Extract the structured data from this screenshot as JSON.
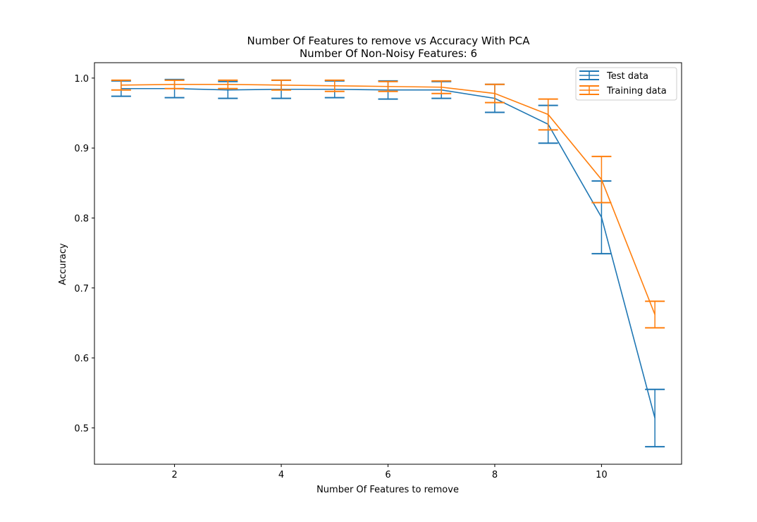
{
  "chart_data": {
    "type": "line",
    "title": "Number Of Features to remove vs Accuracy With PCA",
    "subtitle": "Number Of Non-Noisy Features: 6",
    "xlabel": "Number Of Features to remove",
    "ylabel": "Accuracy",
    "xlim": [
      0.5,
      11.5
    ],
    "ylim": [
      0.448,
      1.022
    ],
    "x_ticks": [
      2,
      4,
      6,
      8,
      10
    ],
    "y_ticks": [
      0.5,
      0.6,
      0.7,
      0.8,
      0.9,
      1.0
    ],
    "x_tick_labels": [
      "2",
      "4",
      "6",
      "8",
      "10"
    ],
    "y_tick_labels": [
      "0.5",
      "0.6",
      "0.7",
      "0.8",
      "0.9",
      "1.0"
    ],
    "grid": false,
    "legend_position": "top-right",
    "x": [
      1,
      2,
      3,
      4,
      5,
      6,
      7,
      8,
      9,
      10,
      11
    ],
    "series": [
      {
        "name": "Test data",
        "color": "#1f77b4",
        "values": [
          0.985,
          0.985,
          0.983,
          0.984,
          0.984,
          0.983,
          0.983,
          0.971,
          0.934,
          0.801,
          0.514
        ],
        "err": [
          0.011,
          0.013,
          0.012,
          0.013,
          0.012,
          0.013,
          0.012,
          0.02,
          0.027,
          0.052,
          0.041
        ]
      },
      {
        "name": "Training data",
        "color": "#ff7f0e",
        "values": [
          0.99,
          0.991,
          0.991,
          0.99,
          0.989,
          0.988,
          0.987,
          0.978,
          0.948,
          0.855,
          0.662
        ],
        "err": [
          0.007,
          0.006,
          0.006,
          0.007,
          0.008,
          0.007,
          0.009,
          0.013,
          0.022,
          0.033,
          0.019
        ]
      }
    ]
  }
}
